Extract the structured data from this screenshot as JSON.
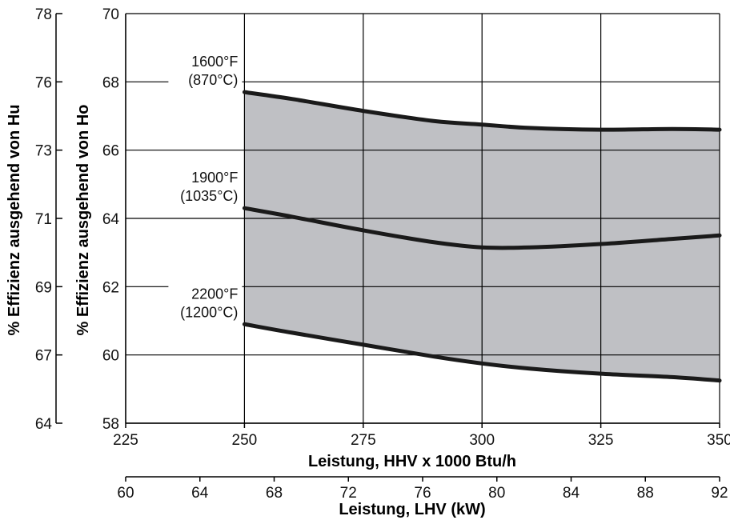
{
  "chart_data": {
    "type": "area",
    "x": [
      250,
      260,
      275,
      290,
      300,
      310,
      325,
      340,
      350
    ],
    "series": [
      {
        "name": "1600°F",
        "name_line2": "(870°C)",
        "values": [
          67.7,
          67.5,
          67.15,
          66.85,
          66.75,
          66.65,
          66.6,
          66.62,
          66.6
        ]
      },
      {
        "name": "1900°F",
        "name_line2": "(1035°C)",
        "values": [
          64.3,
          64.05,
          63.65,
          63.3,
          63.15,
          63.15,
          63.25,
          63.4,
          63.5
        ]
      },
      {
        "name": "2200°F",
        "name_line2": "(1200°C)",
        "values": [
          60.9,
          60.65,
          60.3,
          59.95,
          59.75,
          59.6,
          59.45,
          59.35,
          59.25
        ]
      }
    ],
    "fill_color": "#bfc0c4",
    "x_hhv": {
      "label": "Leistung, HHV x 1000 Btu/h",
      "range": [
        225,
        350
      ],
      "ticks": [
        "225",
        "250",
        "275",
        "300",
        "325",
        "350"
      ]
    },
    "x_lhv": {
      "label": "Leistung, LHV (kW)",
      "range": [
        60,
        92
      ],
      "ticks": [
        "60",
        "64",
        "68",
        "72",
        "76",
        "80",
        "84",
        "88",
        "92"
      ]
    },
    "y_ho": {
      "label": "% Effizienz ausgehend von Ho",
      "range": [
        58,
        70
      ],
      "ticks": [
        "58",
        "60",
        "62",
        "64",
        "66",
        "68",
        "70"
      ]
    },
    "y_hu": {
      "label": "% Effizienz ausgehend von Hu",
      "range": [
        64,
        78
      ],
      "ticks": [
        "64",
        "67",
        "69",
        "71",
        "73",
        "76",
        "78"
      ]
    },
    "grid": true
  }
}
